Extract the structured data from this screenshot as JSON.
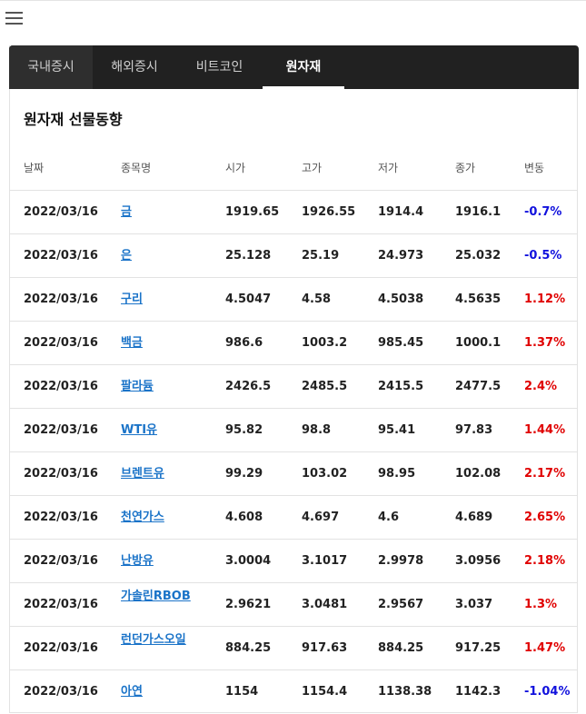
{
  "tabs": [
    {
      "label": "국내증시",
      "active": false
    },
    {
      "label": "해외증시",
      "active": false
    },
    {
      "label": "비트코인",
      "active": false
    },
    {
      "label": "원자재",
      "active": true
    }
  ],
  "section_title": "원자재 선물동향",
  "table": {
    "headers": [
      "날짜",
      "종목명",
      "시가",
      "고가",
      "저가",
      "종가",
      "변동"
    ],
    "rows": [
      {
        "date": "2022/03/16",
        "name": "금",
        "open": "1919.65",
        "high": "1926.55",
        "low": "1914.4",
        "close": "1916.1",
        "change": "-0.7%"
      },
      {
        "date": "2022/03/16",
        "name": "은",
        "open": "25.128",
        "high": "25.19",
        "low": "24.973",
        "close": "25.032",
        "change": "-0.5%"
      },
      {
        "date": "2022/03/16",
        "name": "구리",
        "open": "4.5047",
        "high": "4.58",
        "low": "4.5038",
        "close": "4.5635",
        "change": "1.12%"
      },
      {
        "date": "2022/03/16",
        "name": "백금",
        "open": "986.6",
        "high": "1003.2",
        "low": "985.45",
        "close": "1000.1",
        "change": "1.37%"
      },
      {
        "date": "2022/03/16",
        "name": "팔라듐",
        "open": "2426.5",
        "high": "2485.5",
        "low": "2415.5",
        "close": "2477.5",
        "change": "2.4%"
      },
      {
        "date": "2022/03/16",
        "name": "WTI유",
        "open": "95.82",
        "high": "98.8",
        "low": "95.41",
        "close": "97.83",
        "change": "1.44%"
      },
      {
        "date": "2022/03/16",
        "name": "브렌트유",
        "open": "99.29",
        "high": "103.02",
        "low": "98.95",
        "close": "102.08",
        "change": "2.17%"
      },
      {
        "date": "2022/03/16",
        "name": "천연가스",
        "open": "4.608",
        "high": "4.697",
        "low": "4.6",
        "close": "4.689",
        "change": "2.65%"
      },
      {
        "date": "2022/03/16",
        "name": "난방유",
        "open": "3.0004",
        "high": "3.1017",
        "low": "2.9978",
        "close": "3.0956",
        "change": "2.18%"
      },
      {
        "date": "2022/03/16",
        "name": "가솔린RBOB",
        "open": "2.9621",
        "high": "3.0481",
        "low": "2.9567",
        "close": "3.037",
        "change": "1.3%"
      },
      {
        "date": "2022/03/16",
        "name": "런던가스오일",
        "open": "884.25",
        "high": "917.63",
        "low": "884.25",
        "close": "917.25",
        "change": "1.47%"
      },
      {
        "date": "2022/03/16",
        "name": "아연",
        "open": "1154",
        "high": "1154.4",
        "low": "1138.38",
        "close": "1142.3",
        "change": "-1.04%"
      }
    ]
  },
  "colors": {
    "positive": "#e00000",
    "negative": "#1111dd",
    "link": "#1a73c8",
    "tabbar": "#212121"
  }
}
